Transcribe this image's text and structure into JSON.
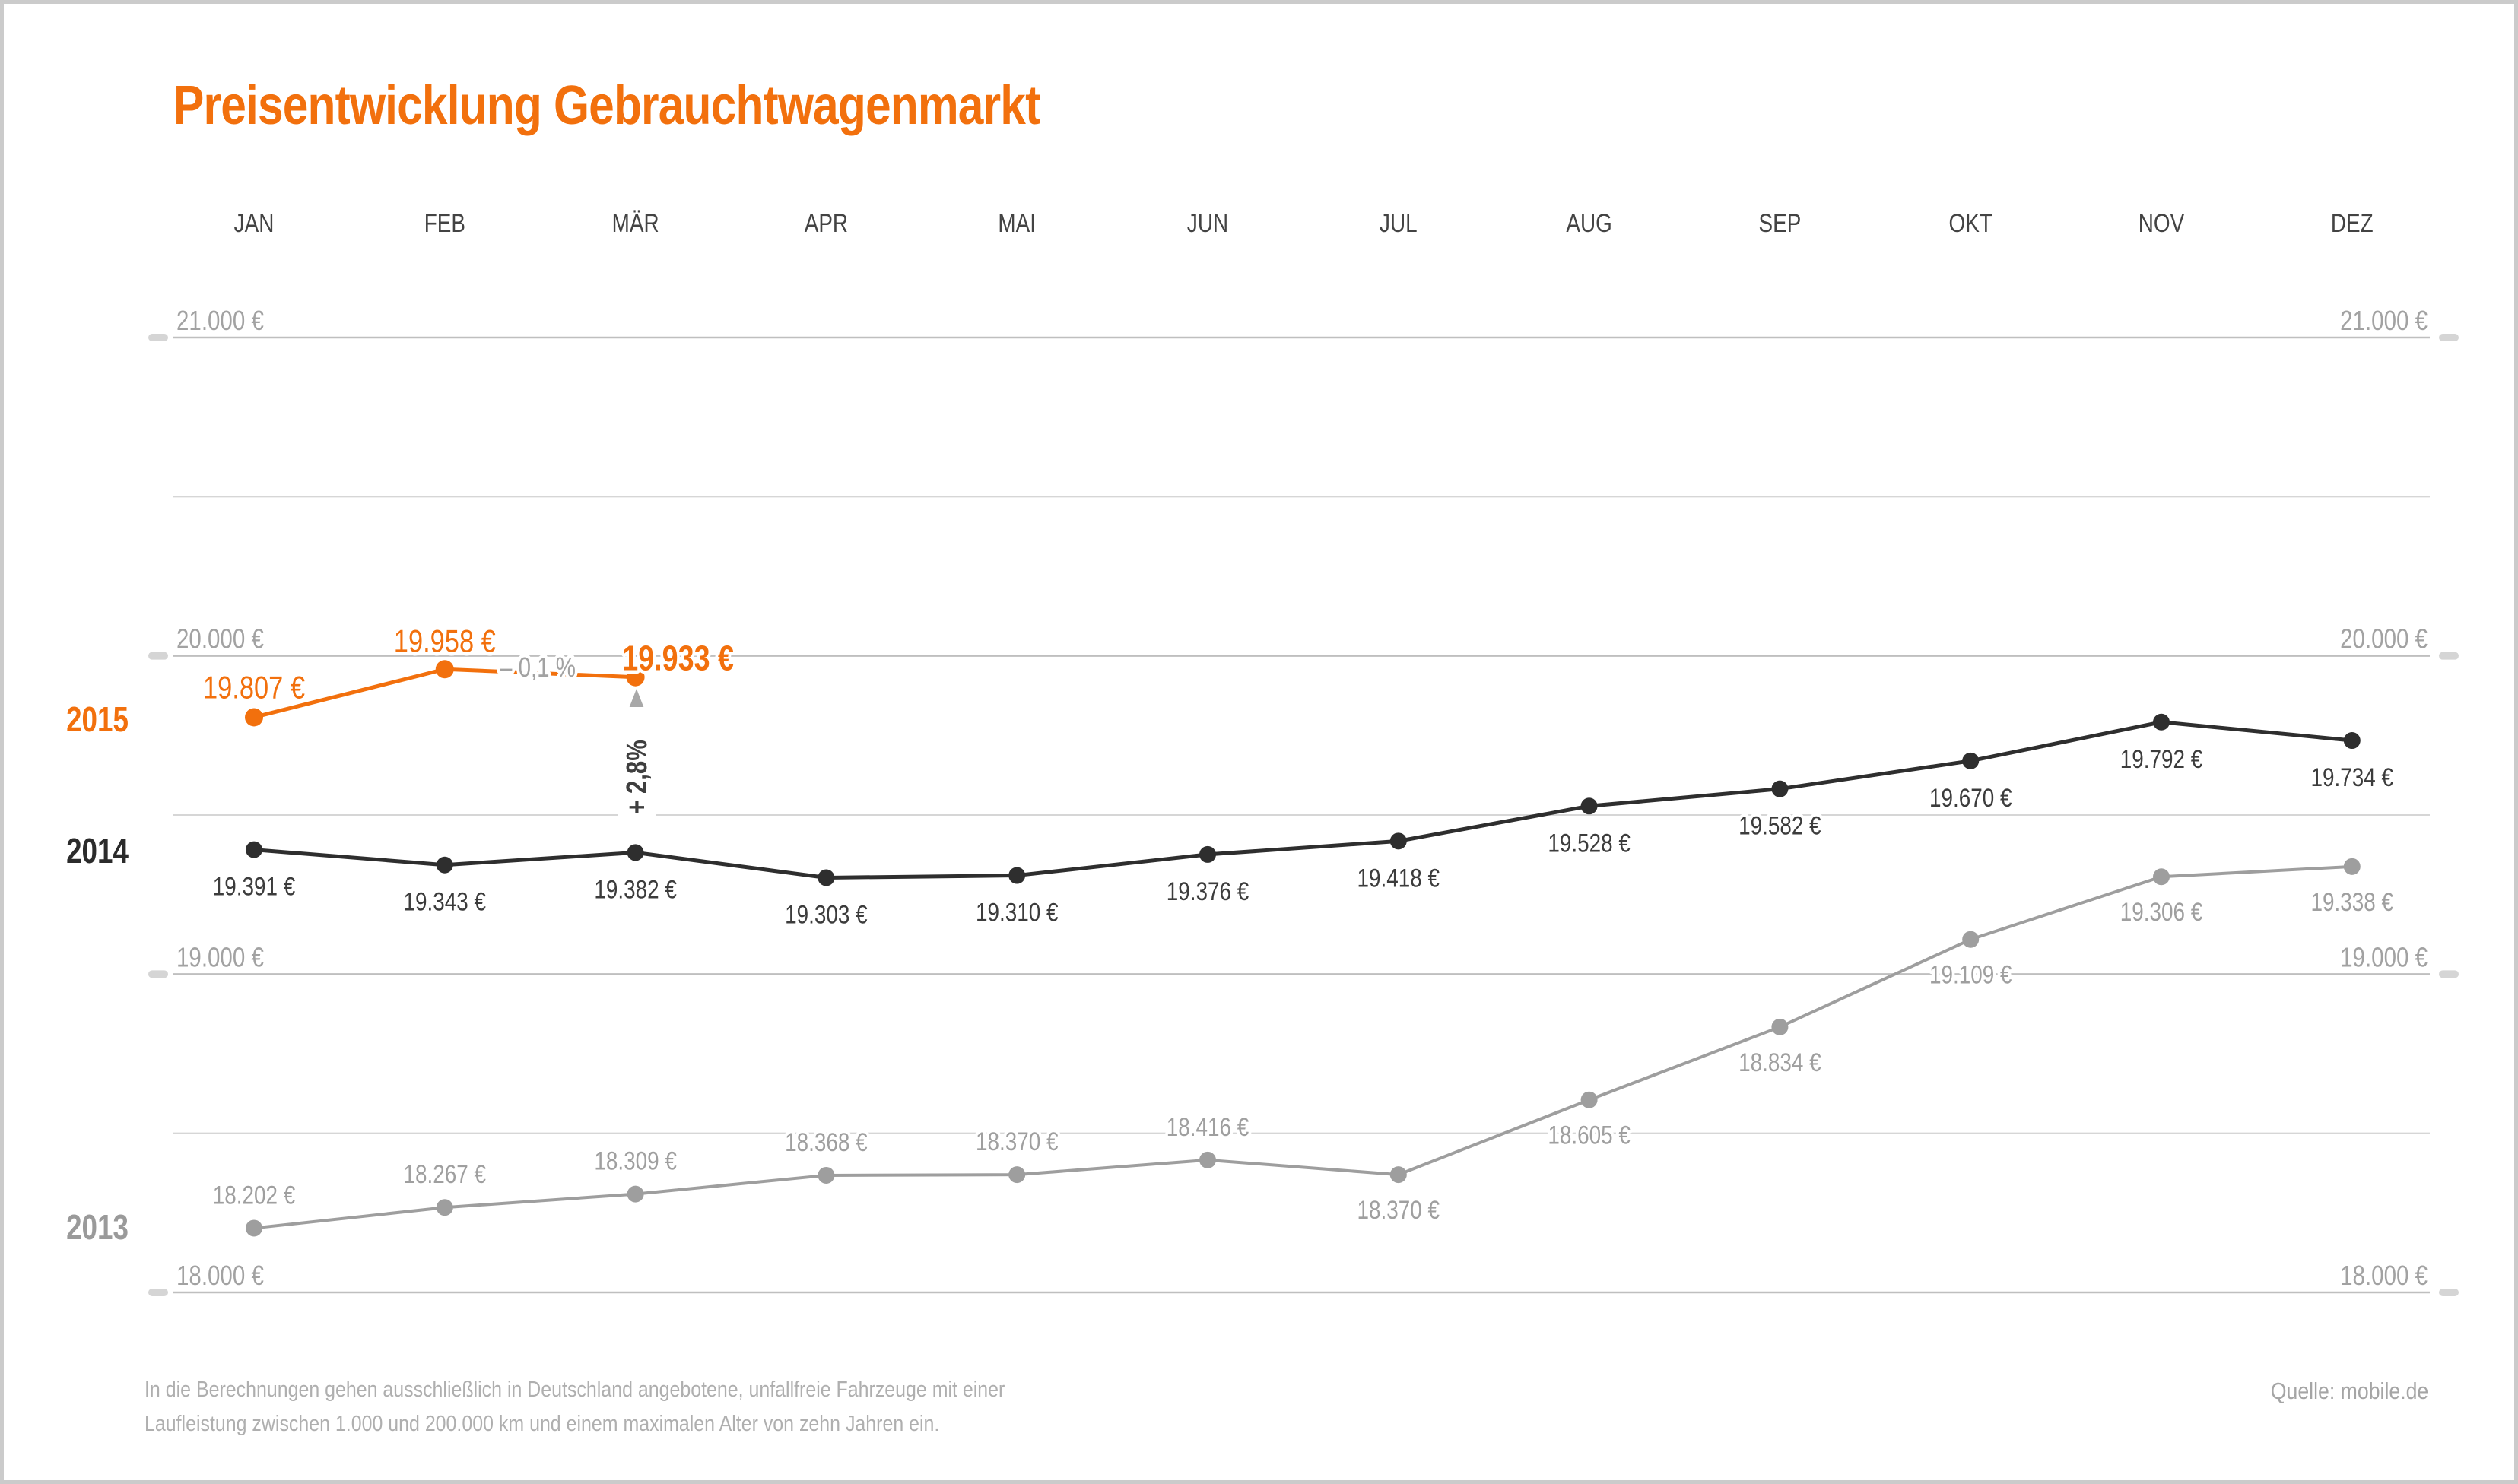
{
  "title": "Preisentwicklung Gebrauchtwagenmarkt",
  "footer": {
    "note_line1": "In die Berechnungen gehen ausschließlich in Deutschland angebotene, unfallfreie Fahrzeuge mit einer",
    "note_line2": "Laufleistung zwischen 1.000 und 200.000 km und einem maximalen Alter von zehn Jahren ein.",
    "source": "Quelle: mobile.de"
  },
  "colors": {
    "accent_orange": "#F2700D",
    "series_2014_dark": "#2E2E2E",
    "series_2013_gray": "#9E9E9E",
    "grid_major": "#BFBFBF",
    "grid_minor": "#D6D6D6",
    "axis_label_gray": "#A2A2A2",
    "month_label_gray": "#434343",
    "tick_dash_gray": "#D5D5D5",
    "annotation_gray": "#A2A2A2",
    "annotation_dark": "#3E3E3E"
  },
  "chart_data": {
    "type": "line",
    "title": "Preisentwicklung Gebrauchtwagenmarkt",
    "categories": [
      "JAN",
      "FEB",
      "MÄR",
      "APR",
      "MAI",
      "JUN",
      "JUL",
      "AUG",
      "SEP",
      "OKT",
      "NOV",
      "DEZ"
    ],
    "y_axis": {
      "unit": "€",
      "ticks": [
        21000,
        20000,
        19000,
        18000
      ],
      "tick_labels": [
        "21.000 €",
        "20.000 €",
        "19.000 €",
        "18.000 €"
      ],
      "minor_gridlines": [
        20500,
        19500,
        18500
      ],
      "ylim": [
        17880,
        21100
      ],
      "labels_on_both_sides": true
    },
    "grid": "horizontal",
    "legend_position": "left-of-first-point",
    "series": [
      {
        "name": "2015",
        "color": "#F2700D",
        "values": [
          19807,
          19958,
          19933
        ],
        "labels": [
          "19.807 €",
          "19.958 €",
          "19.933 €"
        ],
        "emphasis_index": 2
      },
      {
        "name": "2014",
        "color": "#2E2E2E",
        "values": [
          19391,
          19343,
          19382,
          19303,
          19310,
          19376,
          19418,
          19528,
          19582,
          19670,
          19792,
          19734
        ],
        "labels": [
          "19.391 €",
          "19.343 €",
          "19.382 €",
          "19.303 €",
          "19.310 €",
          "19.376 €",
          "19.418 €",
          "19.528 €",
          "19.582 €",
          "19.670 €",
          "19.792 €",
          "19.734 €"
        ]
      },
      {
        "name": "2013",
        "color": "#9E9E9E",
        "values": [
          18202,
          18267,
          18309,
          18368,
          18370,
          18416,
          18370,
          18605,
          18834,
          19109,
          19306,
          19338
        ],
        "labels": [
          "18.202 €",
          "18.267 €",
          "18.309 €",
          "18.368 €",
          "18.370 €",
          "18.416 €",
          "18.370 €",
          "18.605 €",
          "18.834 €",
          "19.109 €",
          "19.306 €",
          "19.338 €"
        ]
      }
    ],
    "annotations": [
      {
        "id": "feb-mar-change",
        "text": "– 0,1 %",
        "refers_to": "2015 FEB→MÄR"
      },
      {
        "id": "yoy-change",
        "text": "+ 2,8%",
        "refers_to": "MÄR 2014→2015"
      }
    ]
  }
}
